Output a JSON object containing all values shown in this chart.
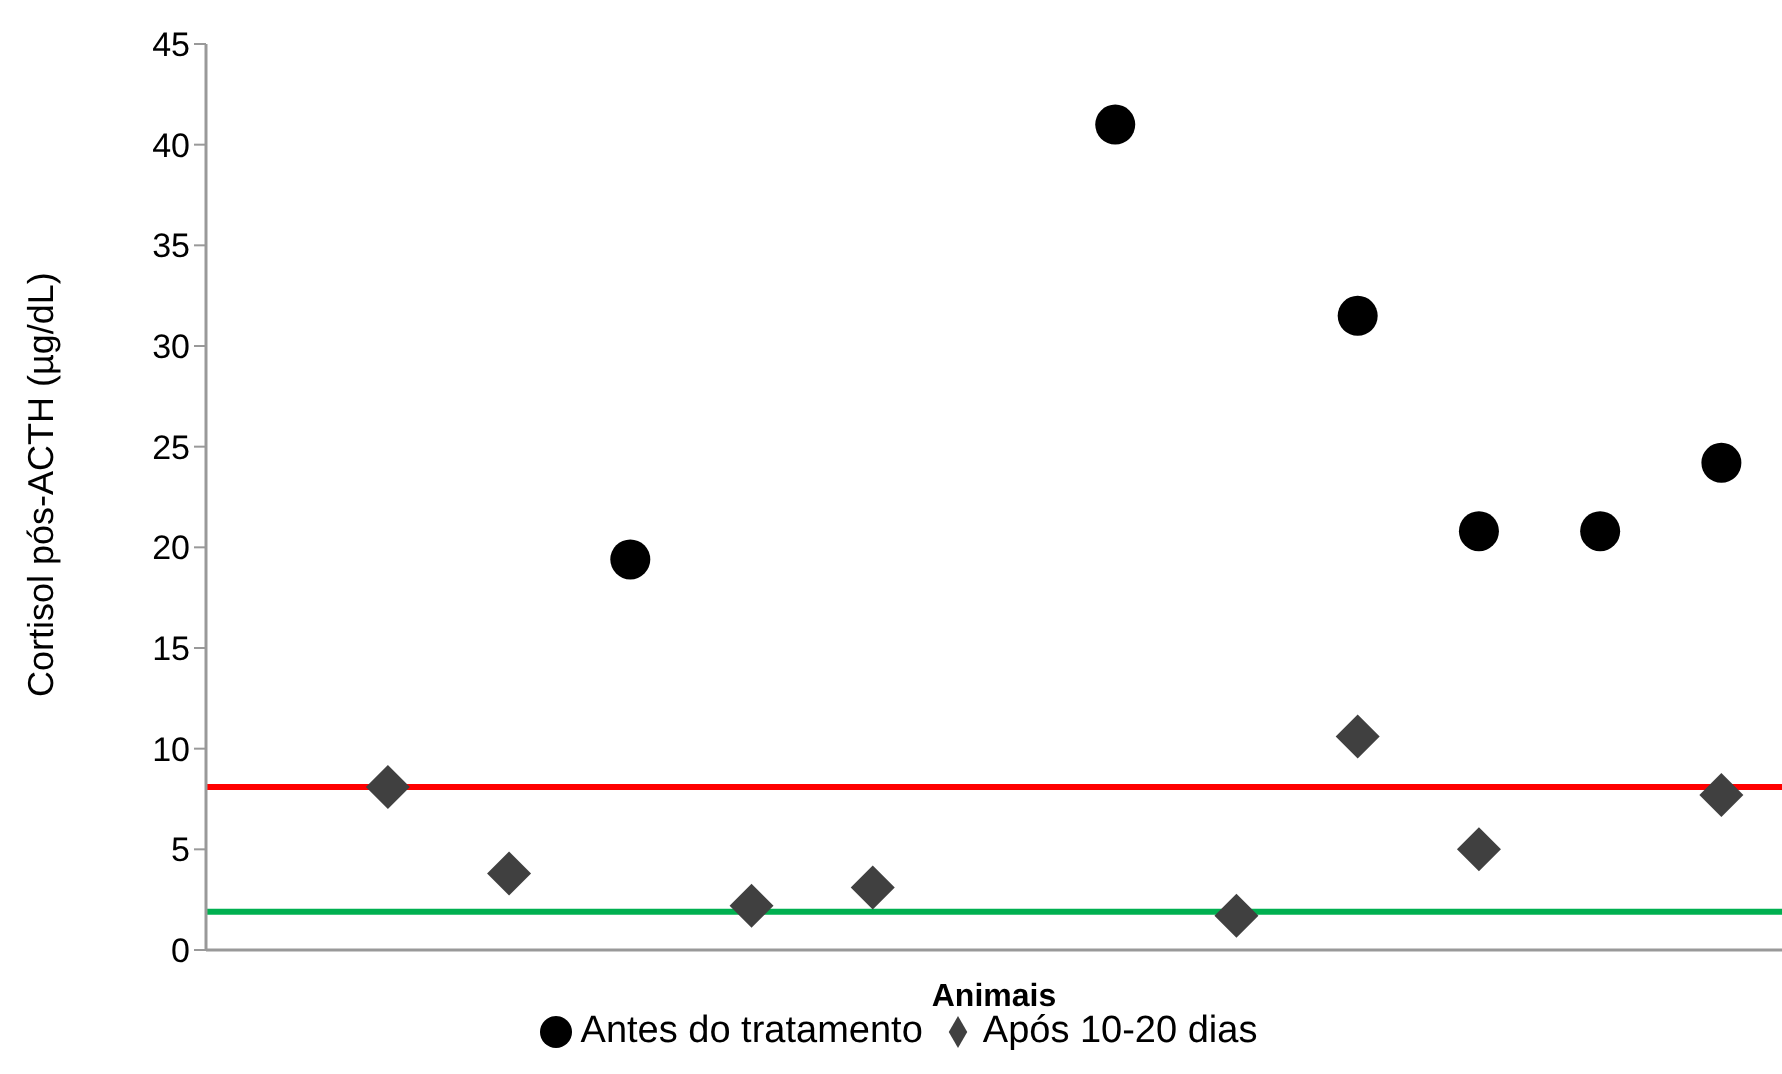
{
  "chart_data": {
    "type": "scatter",
    "xlabel": "Animais",
    "ylabel": "Cortisol pós-ACTH (µg/dL)",
    "categories": [
      null,
      null,
      null,
      null,
      null,
      null,
      null,
      null,
      null,
      null,
      null,
      null,
      null
    ],
    "series": [
      {
        "name": "Antes do tratamento",
        "color": "#000000",
        "marker": "circle",
        "values": [
          null,
          null,
          null,
          19.4,
          null,
          null,
          null,
          41.0,
          null,
          31.5,
          20.8,
          20.8,
          24.2
        ]
      },
      {
        "name": "Após 10-20 dias",
        "color": "#404040",
        "marker": "diamond",
        "values": [
          null,
          8.1,
          3.8,
          null,
          2.2,
          3.1,
          null,
          null,
          1.7,
          10.6,
          5.0,
          null,
          7.7
        ]
      }
    ],
    "ylim": [
      0,
      45
    ],
    "yticks": [
      0,
      5,
      10,
      15,
      20,
      25,
      30,
      35,
      40,
      45
    ],
    "grid": false,
    "legend": "bottom",
    "tick_labels": "y",
    "ref_lines": [
      {
        "axis": "y",
        "value": 8.1,
        "color": "#ff0000"
      },
      {
        "axis": "y",
        "value": 1.9,
        "color": "#00b050"
      }
    ]
  }
}
